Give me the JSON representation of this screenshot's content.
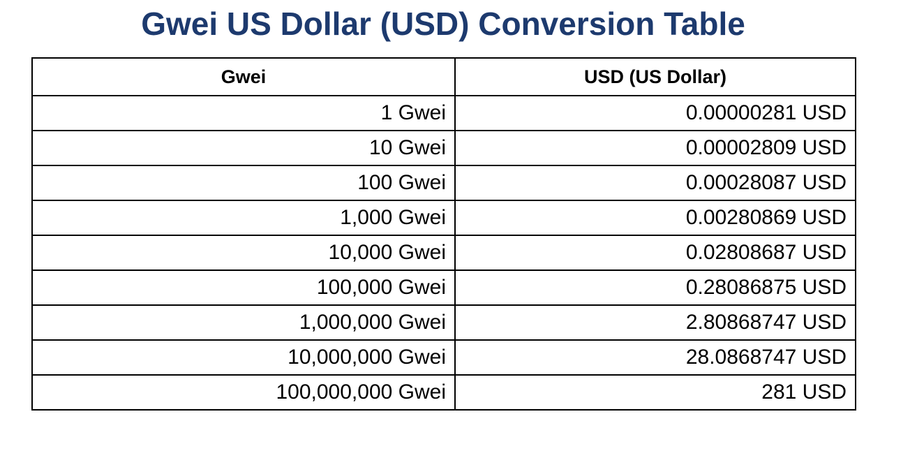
{
  "title": "Gwei US Dollar (USD) Conversion Table",
  "colors": {
    "title": "#1d3a6e",
    "border": "#000000",
    "background": "#ffffff"
  },
  "table": {
    "headers": [
      "Gwei",
      "USD (US Dollar)"
    ],
    "rows": [
      [
        "1 Gwei",
        "0.00000281 USD"
      ],
      [
        "10 Gwei",
        "0.00002809 USD"
      ],
      [
        "100 Gwei",
        "0.00028087 USD"
      ],
      [
        "1,000 Gwei",
        "0.00280869 USD"
      ],
      [
        "10,000 Gwei",
        "0.02808687 USD"
      ],
      [
        "100,000 Gwei",
        "0.28086875 USD"
      ],
      [
        "1,000,000 Gwei",
        "2.80868747 USD"
      ],
      [
        "10,000,000 Gwei",
        "28.0868747 USD"
      ],
      [
        "100,000,000 Gwei",
        "281 USD"
      ]
    ]
  }
}
